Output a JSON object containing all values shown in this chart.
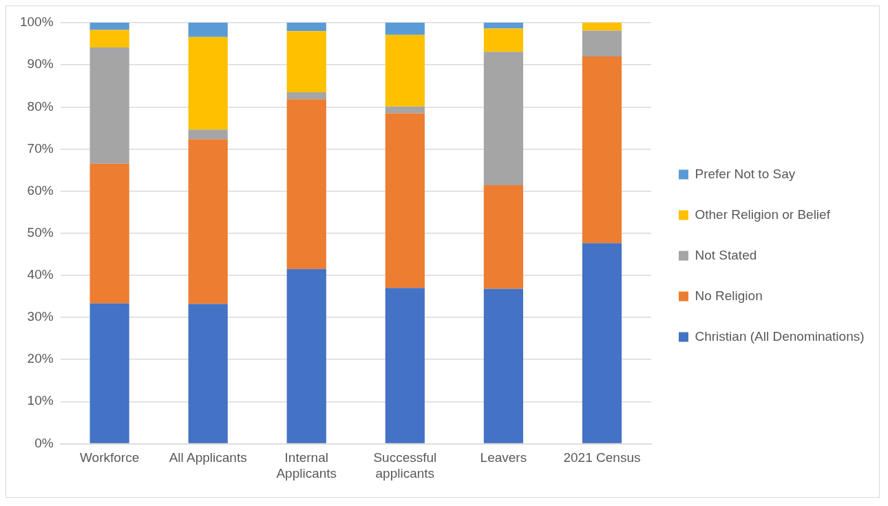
{
  "chart_data": {
    "type": "bar",
    "stacked": true,
    "categories": [
      "Workforce",
      "All Applicants",
      "Internal Applicants",
      "Successful applicants",
      "Leavers",
      "2021 Census"
    ],
    "series": [
      {
        "name": "Christian (All Denominations)",
        "color": "#4472c4",
        "values": [
          33.3,
          33.2,
          41.5,
          37.0,
          36.8,
          47.6
        ]
      },
      {
        "name": "No Religion",
        "color": "#ed7d31",
        "values": [
          33.2,
          39.1,
          40.3,
          41.5,
          24.6,
          44.4
        ]
      },
      {
        "name": "Not Stated",
        "color": "#a5a5a5",
        "values": [
          27.6,
          2.3,
          1.7,
          1.6,
          31.7,
          6.1
        ]
      },
      {
        "name": "Other Religion or Belief",
        "color": "#ffc000",
        "values": [
          4.2,
          22.0,
          14.5,
          17.0,
          5.5,
          1.9
        ]
      },
      {
        "name": "Prefer Not to Say",
        "color": "#5b9bd5",
        "values": [
          1.7,
          3.4,
          2.0,
          2.9,
          1.4,
          null
        ]
      }
    ],
    "ylim": [
      0,
      100
    ],
    "yticks": [
      {
        "value": 0,
        "label": "0%"
      },
      {
        "value": 10,
        "label": "10%"
      },
      {
        "value": 20,
        "label": "20%"
      },
      {
        "value": 30,
        "label": "30%"
      },
      {
        "value": 40,
        "label": "40%"
      },
      {
        "value": 50,
        "label": "50%"
      },
      {
        "value": 60,
        "label": "60%"
      },
      {
        "value": 70,
        "label": "70%"
      },
      {
        "value": 80,
        "label": "80%"
      },
      {
        "value": 90,
        "label": "90%"
      },
      {
        "value": 100,
        "label": "100%"
      }
    ],
    "grid": "y",
    "legend": "right"
  }
}
